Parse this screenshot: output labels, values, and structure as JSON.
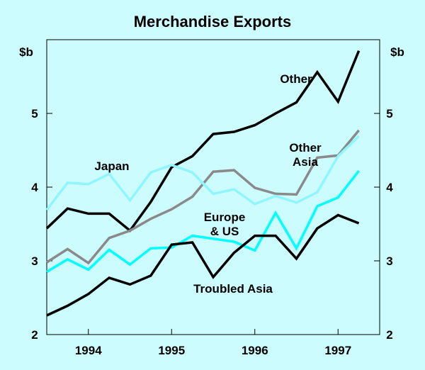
{
  "chart_data": {
    "type": "line",
    "title": "Merchandise Exports",
    "y_unit_left": "$b",
    "y_unit_right": "$b",
    "ylim": [
      2,
      6
    ],
    "yticks": [
      2,
      3,
      4,
      5
    ],
    "x_start": 1993.5,
    "x_end": 1997.5,
    "x_tick_labels": [
      "1994",
      "1995",
      "1996",
      "1997"
    ],
    "x": [
      1993.5,
      1993.75,
      1994.0,
      1994.25,
      1994.5,
      1994.75,
      1995.0,
      1995.25,
      1995.5,
      1995.75,
      1996.0,
      1996.25,
      1996.5,
      1996.75,
      1997.0,
      1997.25
    ],
    "grid": false,
    "series": [
      {
        "name": "Other",
        "label_lines": [
          "Other"
        ],
        "color": "#000000",
        "values": [
          3.44,
          3.71,
          3.64,
          3.64,
          3.41,
          3.8,
          4.27,
          4.42,
          4.72,
          4.75,
          4.84,
          5.0,
          5.15,
          5.56,
          5.16,
          5.85
        ]
      },
      {
        "name": "Other Asia",
        "label_lines": [
          "Other",
          "Asia"
        ],
        "color": "#8a8a8a",
        "values": [
          2.98,
          3.16,
          2.97,
          3.31,
          3.41,
          3.57,
          3.7,
          3.87,
          4.21,
          4.23,
          3.99,
          3.91,
          3.9,
          4.4,
          4.43,
          4.77
        ]
      },
      {
        "name": "Japan",
        "label_lines": [
          "Japan"
        ],
        "color": "#8ff5ff",
        "values": [
          3.69,
          4.06,
          4.04,
          4.18,
          3.82,
          4.2,
          4.3,
          4.2,
          3.91,
          3.97,
          3.77,
          3.88,
          3.79,
          3.93,
          4.42,
          4.69
        ]
      },
      {
        "name": "Europe & US",
        "label_lines": [
          "Europe",
          "& US"
        ],
        "color": "#00ffff",
        "values": [
          2.85,
          3.02,
          2.88,
          3.15,
          2.95,
          3.17,
          3.18,
          3.34,
          3.3,
          3.26,
          3.14,
          3.65,
          3.17,
          3.74,
          3.86,
          4.22
        ]
      },
      {
        "name": "Troubled Asia",
        "label_lines": [
          "Troubled Asia"
        ],
        "color": "#000000",
        "values": [
          2.26,
          2.39,
          2.55,
          2.77,
          2.68,
          2.8,
          3.22,
          3.25,
          2.78,
          3.11,
          3.34,
          3.34,
          3.03,
          3.44,
          3.62,
          3.51
        ]
      }
    ]
  }
}
